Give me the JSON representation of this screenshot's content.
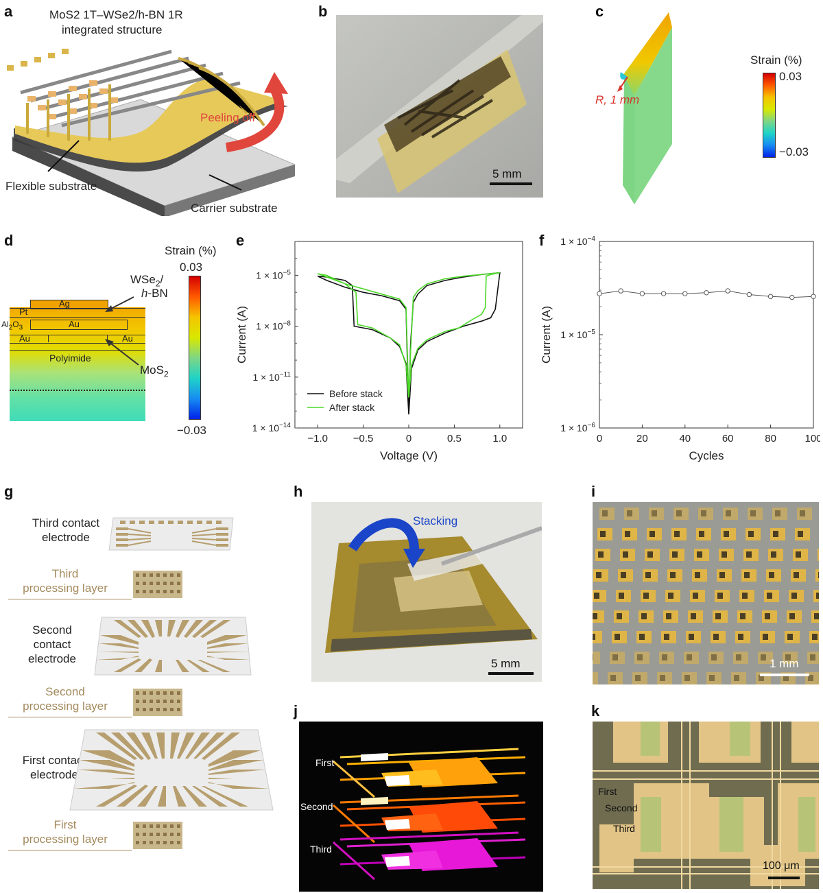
{
  "panels": {
    "a": {
      "letter": "a",
      "title_line1": "MoS2 1T–WSe2/h-BN 1R",
      "title_line2": "integrated structure",
      "peeling": "Peeling off",
      "flexible": "Flexible substrate",
      "carrier": "Carrier substrate"
    },
    "b": {
      "letter": "b",
      "scale": "5 mm"
    },
    "c": {
      "letter": "c",
      "strain_title": "Strain (%)",
      "max": "0.03",
      "min": "−0.03",
      "radius": "R, 1 mm"
    },
    "d": {
      "letter": "d",
      "strain_title": "Strain (%)",
      "max": "0.03",
      "min": "−0.03",
      "layers": {
        "ag": "Ag",
        "pt": "Pt",
        "au1": "Au",
        "al2o3": "Al2O3",
        "au2": "Au",
        "au3": "Au",
        "polyimide": "Polyimide"
      },
      "wse2": "WSe2/",
      "hbn": "h-BN",
      "mos2": "MoS2"
    },
    "e": {
      "letter": "e"
    },
    "f": {
      "letter": "f"
    },
    "g": {
      "letter": "g",
      "third_contact": [
        "Third contact",
        "electrode"
      ],
      "third_processing": [
        "Third",
        "processing layer"
      ],
      "second_contact": [
        "Second",
        "contact",
        "electrode"
      ],
      "second_processing": [
        "Second",
        "processing layer"
      ],
      "first_contact": [
        "First contact",
        "electrode"
      ],
      "first_processing": [
        "First",
        "processing layer"
      ]
    },
    "h": {
      "letter": "h",
      "stacking": "Stacking",
      "scale": "5 mm"
    },
    "i": {
      "letter": "i",
      "scale": "1 mm"
    },
    "j": {
      "letter": "j",
      "first": "First",
      "second": "Second",
      "third": "Third"
    },
    "k": {
      "letter": "k",
      "first": "First",
      "second": "Second",
      "third": "Third",
      "scale": "100 μm"
    }
  },
  "chart_data": [
    {
      "panel": "e",
      "type": "line",
      "xlabel": "Voltage (V)",
      "ylabel": "Current (A)",
      "xlim": [
        -1.25,
        1.25
      ],
      "yscale": "log",
      "ylim_exp": [
        -14,
        -3
      ],
      "xticks": [
        "−1.0",
        "−0.5",
        "0",
        "0.5",
        "1.0"
      ],
      "xtick_values": [
        -1.0,
        -0.5,
        0,
        0.5,
        1.0
      ],
      "yticks": [
        {
          "exp": -5,
          "mant": "1 × 10",
          "sup": "−5"
        },
        {
          "exp": -8,
          "mant": "1 × 10",
          "sup": "−8"
        },
        {
          "exp": -11,
          "mant": "1 × 10",
          "sup": "−11"
        },
        {
          "exp": -14,
          "mant": "1 × 10",
          "sup": "−14"
        }
      ],
      "legend_position": "bottom-left",
      "series": [
        {
          "name": "Before stack",
          "color": "#111111",
          "points": [
            [
              0,
              -13.2
            ],
            [
              0.02,
              -9
            ],
            [
              0.05,
              -6.6
            ],
            [
              0.1,
              -6.1
            ],
            [
              0.2,
              -5.6
            ],
            [
              0.4,
              -5.3
            ],
            [
              0.6,
              -5.1
            ],
            [
              0.8,
              -4.95
            ],
            [
              1.0,
              -4.85
            ],
            [
              1.0,
              -4.85
            ],
            [
              0.95,
              -7
            ],
            [
              0.9,
              -7.5
            ],
            [
              0.8,
              -7.7
            ],
            [
              0.6,
              -8.0
            ],
            [
              0.4,
              -8.4
            ],
            [
              0.2,
              -8.9
            ],
            [
              0.1,
              -9.4
            ],
            [
              0.03,
              -10.5
            ],
            [
              0,
              -13.2
            ],
            [
              -0.03,
              -10.2
            ],
            [
              -0.1,
              -9.2
            ],
            [
              -0.2,
              -8.7
            ],
            [
              -0.4,
              -8.2
            ],
            [
              -0.6,
              -8.0
            ],
            [
              -0.62,
              -5.6
            ],
            [
              -0.7,
              -5.3
            ],
            [
              -0.9,
              -5.1
            ],
            [
              -1.0,
              -5.05
            ],
            [
              -1.0,
              -5.05
            ],
            [
              -0.9,
              -5.3
            ],
            [
              -0.7,
              -5.7
            ],
            [
              -0.5,
              -6.0
            ],
            [
              -0.3,
              -6.2
            ],
            [
              -0.1,
              -6.5
            ],
            [
              -0.03,
              -7.0
            ],
            [
              0,
              -13.2
            ]
          ]
        },
        {
          "name": "After stack",
          "color": "#4cd92a",
          "points": [
            [
              0,
              -12.2
            ],
            [
              0.02,
              -9.5
            ],
            [
              0.05,
              -6.3
            ],
            [
              0.1,
              -5.9
            ],
            [
              0.2,
              -5.5
            ],
            [
              0.4,
              -5.2
            ],
            [
              0.6,
              -5.05
            ],
            [
              0.8,
              -4.95
            ],
            [
              1.0,
              -4.85
            ],
            [
              1.0,
              -4.85
            ],
            [
              0.9,
              -4.95
            ],
            [
              0.85,
              -5.05
            ],
            [
              0.84,
              -6.9
            ],
            [
              0.8,
              -7.3
            ],
            [
              0.7,
              -7.6
            ],
            [
              0.55,
              -8.1
            ],
            [
              0.4,
              -8.3
            ],
            [
              0.2,
              -8.8
            ],
            [
              0.1,
              -9.3
            ],
            [
              0.03,
              -10.3
            ],
            [
              0,
              -12.2
            ],
            [
              -0.03,
              -10.3
            ],
            [
              -0.1,
              -9.1
            ],
            [
              -0.2,
              -8.7
            ],
            [
              -0.4,
              -8.1
            ],
            [
              -0.56,
              -7.9
            ],
            [
              -0.58,
              -6.0
            ],
            [
              -0.7,
              -5.5
            ],
            [
              -0.9,
              -5.1
            ],
            [
              -1.0,
              -4.9
            ],
            [
              -1.0,
              -4.9
            ],
            [
              -0.9,
              -5.0
            ],
            [
              -0.7,
              -5.5
            ],
            [
              -0.5,
              -5.8
            ],
            [
              -0.3,
              -6.1
            ],
            [
              -0.1,
              -6.4
            ],
            [
              -0.03,
              -6.9
            ],
            [
              0,
              -12.2
            ]
          ]
        }
      ]
    },
    {
      "panel": "f",
      "type": "line",
      "xlabel": "Cycles",
      "ylabel": "Current (A)",
      "yscale": "log",
      "xlim": [
        0,
        100
      ],
      "ylim_exp": [
        -6,
        -4
      ],
      "xticks": [
        0,
        20,
        40,
        60,
        80,
        100
      ],
      "yticks": [
        {
          "exp": -4,
          "mant": "1 × 10",
          "sup": "−4"
        },
        {
          "exp": -5,
          "mant": "1 × 10",
          "sup": "−5"
        },
        {
          "exp": -6,
          "mant": "1 × 10",
          "sup": "−6"
        }
      ],
      "series": [
        {
          "name": "",
          "color": "#555555",
          "x": [
            0,
            10,
            20,
            30,
            40,
            50,
            60,
            70,
            80,
            90,
            100
          ],
          "y_exp": [
            -4.56,
            -4.53,
            -4.56,
            -4.56,
            -4.56,
            -4.55,
            -4.53,
            -4.57,
            -4.59,
            -4.6,
            -4.59
          ]
        }
      ]
    }
  ]
}
